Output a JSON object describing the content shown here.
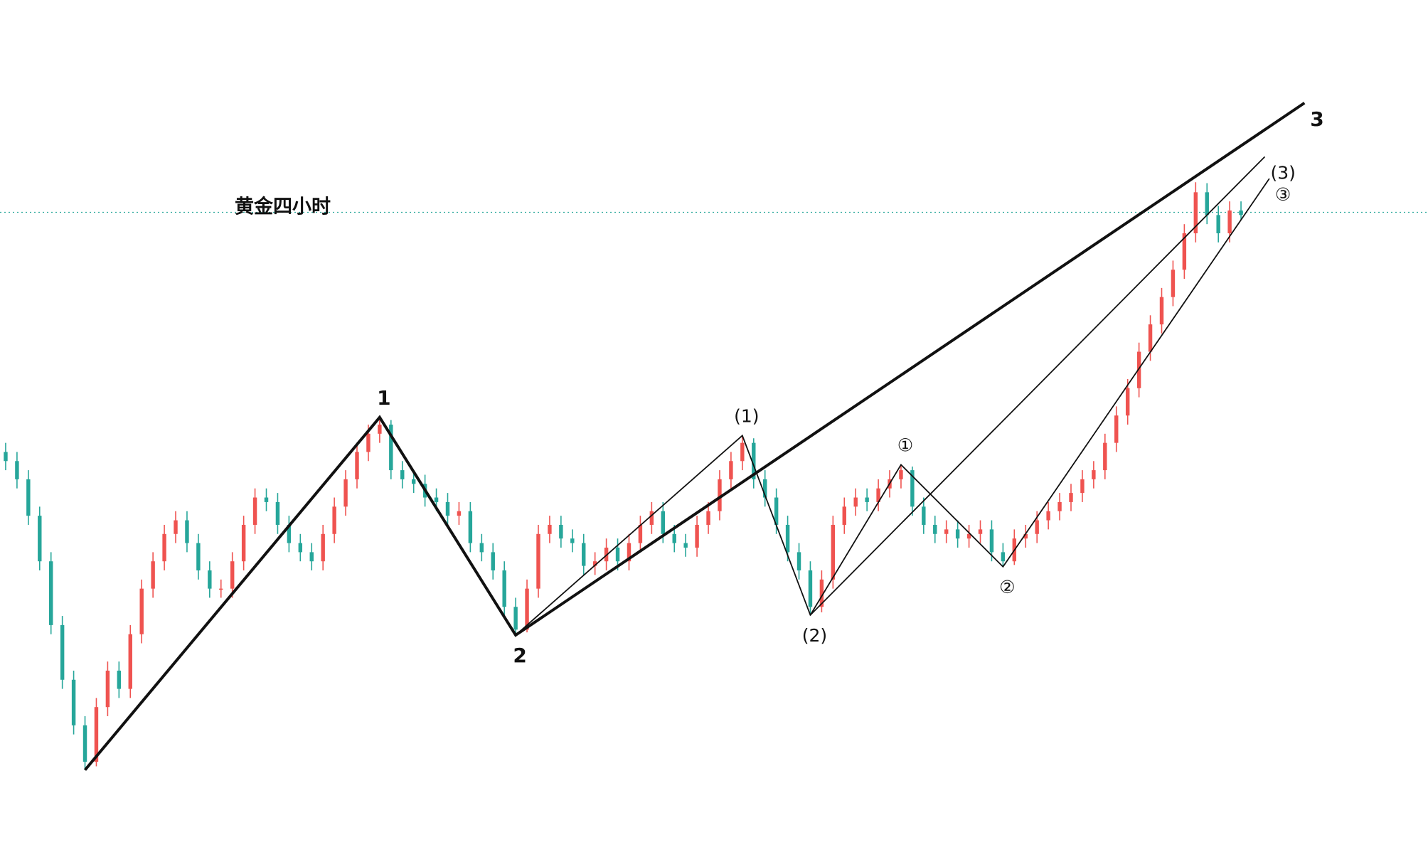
{
  "chart_data": {
    "type": "candlestick",
    "title": "黄金四小时",
    "xlim": [
      -0.5,
      125.5
    ],
    "ylim": [
      0,
      946
    ],
    "up_color": "#ef5350",
    "down_color": "#26a69a",
    "reference_line": 713,
    "reference_color": "#26a69a",
    "open": [
      450,
      440,
      420,
      380,
      330,
      260,
      200,
      150,
      110,
      170,
      210,
      190,
      250,
      300,
      330,
      360,
      375,
      350,
      320,
      300,
      300,
      330,
      370,
      400,
      395,
      370,
      350,
      340,
      330,
      360,
      390,
      420,
      450,
      470,
      480,
      430,
      420,
      415,
      400,
      395,
      380,
      385,
      350,
      340,
      320,
      280,
      255,
      300,
      360,
      370,
      355,
      350,
      325,
      330,
      345,
      330,
      350,
      370,
      385,
      360,
      350,
      345,
      370,
      385,
      420,
      440,
      460,
      420,
      400,
      370,
      340,
      320,
      280,
      310,
      370,
      390,
      400,
      395,
      410,
      420,
      430,
      390,
      370,
      360,
      365,
      355,
      360,
      365,
      340,
      330,
      355,
      360,
      375,
      385,
      395,
      405,
      420,
      430,
      460,
      490,
      520,
      560,
      590,
      620,
      650,
      690,
      735,
      710,
      690,
      715
    ],
    "high": [
      460,
      450,
      430,
      390,
      340,
      270,
      210,
      160,
      180,
      220,
      220,
      260,
      310,
      340,
      370,
      385,
      385,
      360,
      330,
      310,
      340,
      380,
      410,
      410,
      405,
      380,
      360,
      350,
      370,
      400,
      430,
      460,
      480,
      488,
      485,
      440,
      430,
      425,
      410,
      405,
      395,
      395,
      360,
      350,
      330,
      290,
      310,
      370,
      380,
      380,
      365,
      360,
      340,
      355,
      355,
      360,
      380,
      395,
      395,
      370,
      360,
      380,
      395,
      430,
      450,
      468,
      465,
      430,
      410,
      380,
      350,
      330,
      320,
      380,
      400,
      410,
      410,
      420,
      430,
      436,
      434,
      400,
      380,
      375,
      375,
      370,
      375,
      375,
      350,
      365,
      370,
      385,
      395,
      405,
      415,
      430,
      440,
      470,
      500,
      530,
      570,
      600,
      630,
      660,
      700,
      746,
      745,
      720,
      725,
      725
    ],
    "low": [
      430,
      410,
      370,
      320,
      250,
      190,
      140,
      101,
      105,
      160,
      180,
      180,
      240,
      290,
      320,
      350,
      340,
      310,
      290,
      290,
      290,
      320,
      360,
      385,
      360,
      340,
      330,
      320,
      320,
      350,
      380,
      410,
      440,
      460,
      420,
      410,
      405,
      390,
      385,
      370,
      370,
      340,
      330,
      310,
      270,
      249,
      252,
      290,
      350,
      345,
      340,
      315,
      315,
      320,
      320,
      320,
      340,
      360,
      350,
      340,
      335,
      335,
      360,
      375,
      410,
      430,
      410,
      390,
      360,
      330,
      310,
      271,
      274,
      300,
      360,
      380,
      385,
      385,
      400,
      410,
      380,
      360,
      350,
      350,
      345,
      345,
      350,
      330,
      324,
      326,
      345,
      350,
      365,
      375,
      385,
      395,
      410,
      420,
      450,
      480,
      510,
      550,
      580,
      610,
      640,
      680,
      700,
      680,
      680,
      705
    ],
    "close": [
      440,
      420,
      380,
      330,
      260,
      200,
      150,
      110,
      170,
      210,
      190,
      250,
      300,
      330,
      360,
      375,
      350,
      320,
      300,
      300,
      330,
      370,
      400,
      395,
      370,
      350,
      340,
      330,
      360,
      390,
      420,
      450,
      470,
      480,
      430,
      420,
      415,
      400,
      395,
      380,
      385,
      350,
      340,
      320,
      280,
      255,
      300,
      360,
      370,
      355,
      350,
      325,
      330,
      345,
      330,
      350,
      370,
      385,
      360,
      350,
      345,
      370,
      385,
      420,
      440,
      460,
      420,
      400,
      370,
      340,
      320,
      280,
      310,
      370,
      390,
      400,
      395,
      410,
      420,
      430,
      390,
      370,
      360,
      365,
      355,
      360,
      365,
      340,
      330,
      355,
      360,
      375,
      385,
      395,
      405,
      420,
      430,
      460,
      490,
      520,
      560,
      590,
      620,
      650,
      690,
      735,
      710,
      690,
      715,
      710
    ],
    "waves": [
      {
        "bold": true,
        "x": [
          7,
          33,
          45,
          114.6
        ],
        "y": [
          101,
          488,
          249,
          833
        ],
        "labels": [
          null,
          "1",
          "2",
          "3"
        ]
      },
      {
        "bold": false,
        "x": [
          45,
          65,
          71,
          111.1
        ],
        "y": [
          249,
          468,
          271,
          774
        ],
        "labels": [
          null,
          "(1)",
          "(2)",
          "(3)"
        ]
      },
      {
        "bold": false,
        "x": [
          71,
          79,
          88,
          111.5
        ],
        "y": [
          271,
          436,
          324,
          750
        ],
        "labels": [
          null,
          "①",
          "②",
          "③"
        ]
      }
    ]
  }
}
